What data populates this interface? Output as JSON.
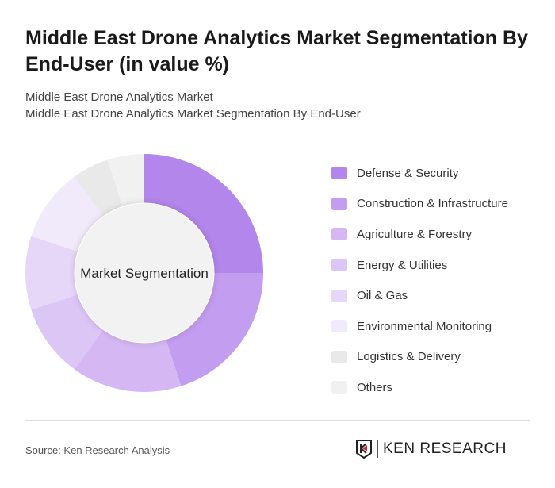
{
  "title": "Middle East Drone Analytics Market Segmentation By End-User (in value %)",
  "subtitle1": "Middle East Drone Analytics Market",
  "subtitle2": "Middle East Drone Analytics Market Segmentation By End-User",
  "source": "Source: Ken Research Analysis",
  "logo_text": "KEN RESEARCH",
  "chart_data": {
    "type": "pie",
    "variant": "donut",
    "center_label": "Market Segmentation",
    "categories": [
      "Defense & Security",
      "Construction & Infrastructure",
      "Agriculture & Forestry",
      "Energy & Utilities",
      "Oil & Gas",
      "Environmental Monitoring",
      "Logistics & Delivery",
      "Others"
    ],
    "values": [
      25,
      20,
      15,
      10,
      10,
      10,
      5,
      5
    ],
    "colors": [
      "#b286ea",
      "#c39def",
      "#d5b8f3",
      "#dcc6f5",
      "#e6d6f8",
      "#f1eafb",
      "#e9e9e9",
      "#f1f1f1"
    ],
    "legend_position": "right"
  }
}
